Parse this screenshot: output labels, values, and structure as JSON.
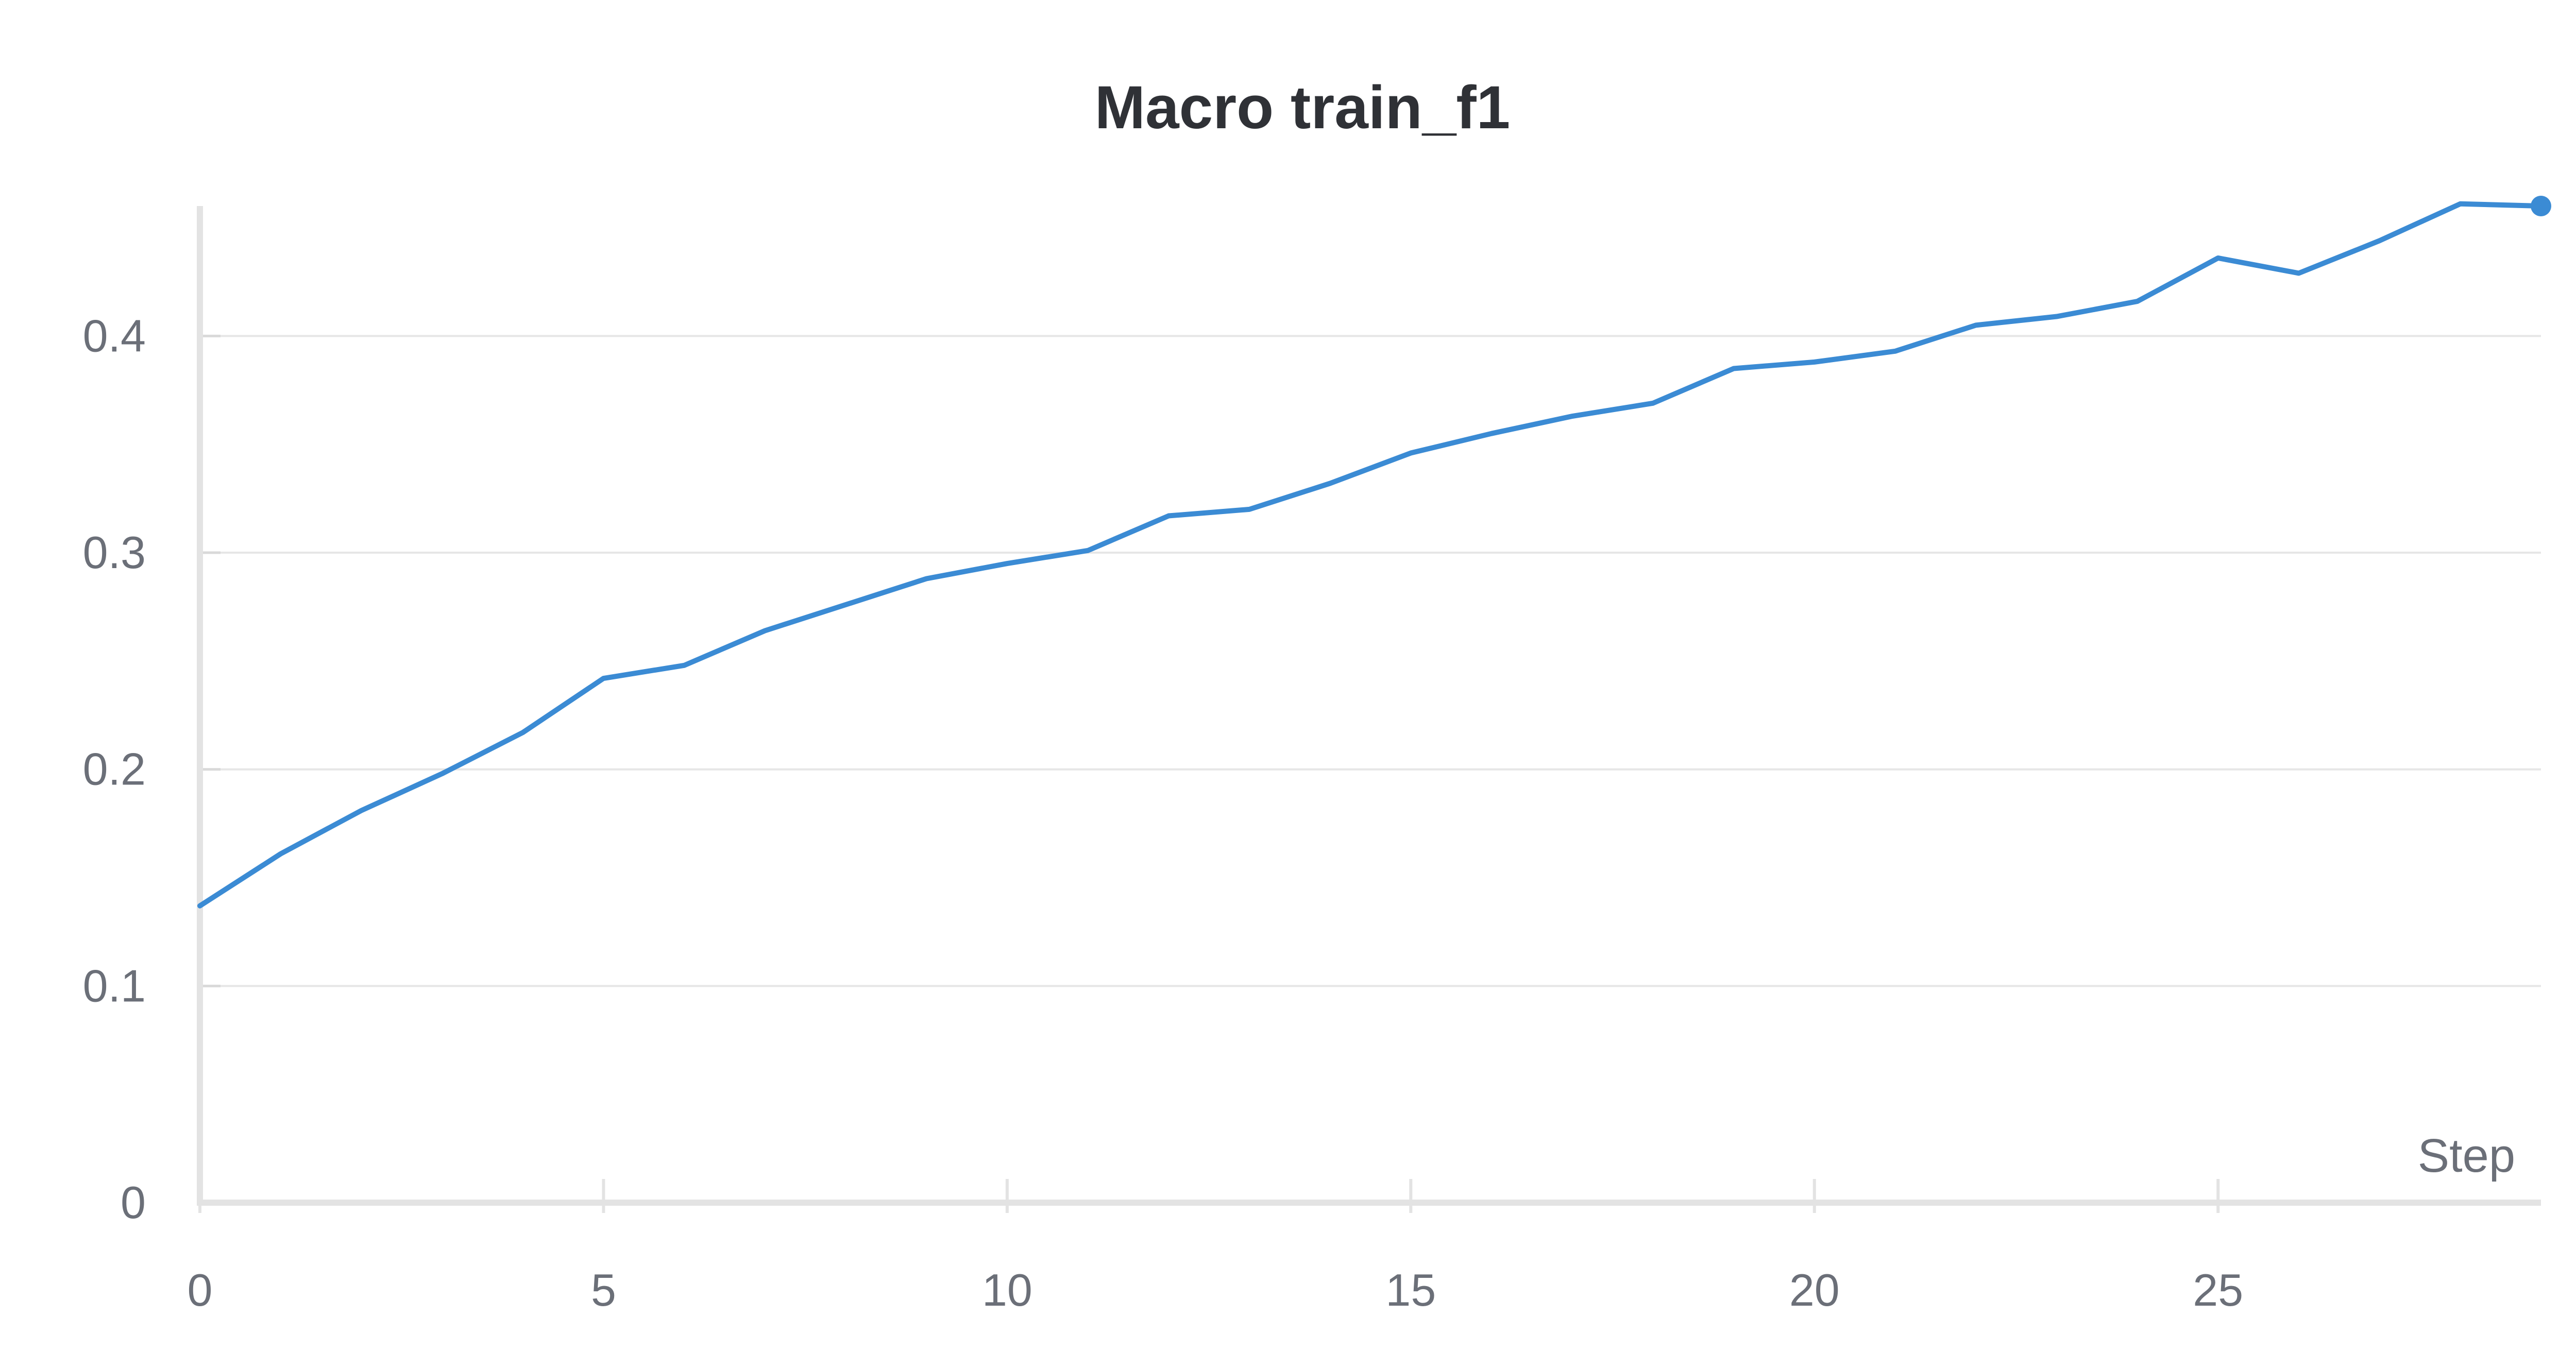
{
  "chart_data": {
    "type": "line",
    "title": "Macro train_f1",
    "xlabel": "Step",
    "ylabel": "",
    "xlim": [
      0,
      29
    ],
    "ylim": [
      0,
      0.46
    ],
    "xticks": [
      0,
      5,
      10,
      15,
      20,
      25
    ],
    "yticks": [
      0,
      0.1,
      0.2,
      0.3,
      0.4
    ],
    "xtick_labels": [
      "0",
      "5",
      "10",
      "15",
      "20",
      "25"
    ],
    "ytick_labels": [
      "0",
      "0.1",
      "0.2",
      "0.3",
      "0.4"
    ],
    "grid": "horizontal",
    "legend": "none",
    "line_color": "#3b8bd4",
    "x": [
      0,
      1,
      2,
      3,
      4,
      5,
      6,
      7,
      8,
      9,
      10,
      11,
      12,
      13,
      14,
      15,
      16,
      17,
      18,
      19,
      20,
      21,
      22,
      23,
      24,
      25,
      26,
      27,
      28,
      29
    ],
    "series": [
      {
        "values": [
          0.137,
          0.161,
          0.181,
          0.198,
          0.217,
          0.242,
          0.248,
          0.264,
          0.276,
          0.288,
          0.295,
          0.301,
          0.317,
          0.32,
          0.332,
          0.346,
          0.355,
          0.363,
          0.369,
          0.385,
          0.388,
          0.393,
          0.405,
          0.409,
          0.416,
          0.436,
          0.429,
          0.444,
          0.461,
          0.46
        ]
      }
    ]
  }
}
